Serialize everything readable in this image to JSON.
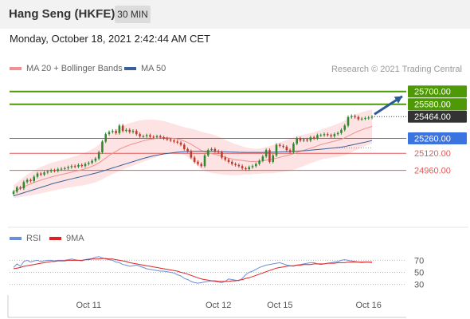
{
  "header": {
    "title": "Hang Seng (HKFE)",
    "timeframe": "30 MIN",
    "datetime": "Monday, October 18, 2021 2:42:44 AM CET"
  },
  "legend": {
    "ma20_label": "MA 20 + Bollinger Bands",
    "ma50_label": "MA 50",
    "credit": "Research © 2021 Trading Central",
    "rsi_label": "RSI",
    "rsi_ma_label": "9MA"
  },
  "colors": {
    "ma20": "#f19090",
    "band_fill": "#fde0e0",
    "ma50": "#3a5f9a",
    "resistance": "#4e9a06",
    "pivot": "#3b73e0",
    "support": "#e05b5b",
    "current": "#333333",
    "arrow": "#2d5b9a",
    "rsi": "#6b8fd6",
    "rsi_ma": "#dd2222",
    "candle_up": "#2f8a2f",
    "candle_down": "#c0392b"
  },
  "chart_data": [
    {
      "type": "candlestick",
      "title": "Hang Seng (HKFE)",
      "timeframe": "30 MIN",
      "x_labels": [
        "Oct 11",
        "Oct 12",
        "Oct 15",
        "Oct 16"
      ],
      "ylim": [
        24650,
        25840
      ],
      "levels": [
        {
          "label": "25700.00",
          "value": 25700,
          "kind": "resistance"
        },
        {
          "label": "25580.00",
          "value": 25580,
          "kind": "resistance"
        },
        {
          "label": "25464.00",
          "value": 25464,
          "kind": "current"
        },
        {
          "label": "25260.00",
          "value": 25260,
          "kind": "pivot"
        },
        {
          "label": "25120.00",
          "value": 25120,
          "kind": "support"
        },
        {
          "label": "24960.00",
          "value": 24960,
          "kind": "support"
        }
      ],
      "close": [
        24760,
        24800,
        24790,
        24850,
        24870,
        24860,
        24900,
        24930,
        24920,
        24940,
        24950,
        24960,
        24955,
        24970,
        24975,
        24980,
        24990,
        25000,
        24995,
        25010,
        25000,
        25020,
        25030,
        25050,
        25070,
        25130,
        25230,
        25300,
        25320,
        25330,
        25310,
        25380,
        25330,
        25340,
        25320,
        25330,
        25300,
        25280,
        25280,
        25290,
        25275,
        25270,
        25280,
        25270,
        25260,
        25250,
        25240,
        25230,
        25220,
        25200,
        25160,
        25140,
        25080,
        25040,
        25020,
        25000,
        25100,
        25150,
        25160,
        25140,
        25130,
        25080,
        25060,
        25040,
        25020,
        25010,
        25000,
        24980,
        24970,
        24990,
        25000,
        25020,
        25050,
        25090,
        25150,
        25040,
        25100,
        25200,
        25190,
        25180,
        25150,
        25130,
        25210,
        25260,
        25240,
        25250,
        25240,
        25270,
        25260,
        25290,
        25290,
        25300,
        25290,
        25280,
        25300,
        25310,
        25340,
        25380,
        25460,
        25470,
        25460,
        25440,
        25445,
        25450,
        25455,
        25464
      ],
      "ma20": [
        24760,
        24775,
        24790,
        24805,
        24820,
        24832,
        24845,
        24857,
        24868,
        24878,
        24888,
        24897,
        24905,
        24913,
        24920,
        24928,
        24935,
        24943,
        24950,
        24958,
        24965,
        24975,
        24985,
        24998,
        25012,
        25030,
        25052,
        25075,
        25098,
        25120,
        25138,
        25158,
        25172,
        25186,
        25198,
        25208,
        25218,
        25228,
        25236,
        25244,
        25250,
        25256,
        25260,
        25264,
        25266,
        25266,
        25264,
        25260,
        25254,
        25246,
        25235,
        25222,
        25205,
        25186,
        25166,
        25146,
        25134,
        25125,
        25118,
        25110,
        25102,
        25092,
        25083,
        25074,
        25066,
        25060,
        25056,
        25052,
        25048,
        25045,
        25044,
        25044,
        25046,
        25050,
        25056,
        25060,
        25066,
        25074,
        25082,
        25090,
        25098,
        25106,
        25116,
        25128,
        25138,
        25148,
        25158,
        25168,
        25178,
        25190,
        25200,
        25210,
        25218,
        25226,
        25234,
        25242,
        25252,
        25265,
        25282,
        25298,
        25314,
        25328,
        25340,
        25352,
        25362,
        25372
      ],
      "ma50": [
        24720,
        24730,
        24740,
        24750,
        24760,
        24770,
        24780,
        24790,
        24800,
        24810,
        24820,
        24830,
        24840,
        24848,
        24856,
        24864,
        24872,
        24880,
        24888,
        24895,
        24902,
        24910,
        24918,
        24926,
        24934,
        24942,
        24952,
        24962,
        24972,
        24982,
        24992,
        25002,
        25012,
        25022,
        25032,
        25042,
        25052,
        25062,
        25072,
        25080,
        25088,
        25096,
        25102,
        25108,
        25114,
        25118,
        25122,
        25126,
        25130,
        25133,
        25135,
        25136,
        25137,
        25138,
        25138,
        25138,
        25138,
        25138,
        25138,
        25137,
        25136,
        25135,
        25134,
        25133,
        25132,
        25131,
        25130,
        25129,
        25128,
        25128,
        25128,
        25128,
        25128,
        25128,
        25129,
        25130,
        25131,
        25132,
        25133,
        25134,
        25135,
        25136,
        25138,
        25140,
        25142,
        25144,
        25146,
        25149,
        25152,
        25155,
        25158,
        25161,
        25164,
        25167,
        25170,
        25174,
        25178,
        25183,
        25190,
        25197,
        25204,
        25211,
        25218,
        25225,
        25232,
        25240
      ],
      "band_width": [
        60,
        70,
        80,
        90,
        100,
        108,
        115,
        120,
        124,
        127,
        130,
        132,
        133,
        134,
        135,
        136,
        138,
        140,
        142,
        145,
        148,
        152,
        156,
        160,
        165,
        170,
        176,
        182,
        188,
        194,
        198,
        202,
        204,
        205,
        205,
        204,
        202,
        200,
        196,
        192,
        186,
        180,
        172,
        164,
        156,
        148,
        140,
        134,
        130,
        128,
        130,
        136,
        146,
        158,
        168,
        176,
        180,
        182,
        182,
        180,
        176,
        170,
        164,
        158,
        152,
        146,
        140,
        134,
        128,
        124,
        120,
        118,
        118,
        120,
        124,
        128,
        132,
        136,
        140,
        144,
        148,
        150,
        152,
        152,
        150,
        148,
        145,
        142,
        140,
        140,
        140,
        142,
        145,
        148,
        152,
        156,
        160,
        164,
        168,
        170,
        170,
        168,
        166,
        164,
        162,
        160
      ],
      "arrow": {
        "from_value": 25464,
        "to_value": 25700,
        "direction": "up"
      }
    },
    {
      "type": "line",
      "title": "RSI",
      "series": [
        {
          "name": "RSI",
          "values": [
            58,
            64,
            60,
            68,
            70,
            67,
            69,
            70,
            68,
            69,
            70,
            70,
            69,
            70,
            70,
            70,
            71,
            72,
            71,
            70,
            69,
            71,
            72,
            73,
            75,
            76,
            74,
            72,
            71,
            70,
            67,
            66,
            63,
            62,
            60,
            61,
            62,
            60,
            58,
            56,
            55,
            54,
            53,
            52,
            52,
            51,
            50,
            49,
            46,
            44,
            40,
            38,
            35,
            33,
            32,
            33,
            34,
            35,
            36,
            35,
            34,
            33,
            35,
            39,
            38,
            37,
            36,
            40,
            46,
            50,
            52,
            55,
            58,
            60,
            62,
            63,
            64,
            65,
            66,
            64,
            62,
            61,
            60,
            62,
            63,
            64,
            65,
            66,
            66,
            64,
            63,
            64,
            65,
            66,
            67,
            68,
            70,
            71,
            70,
            69,
            68,
            67,
            66,
            67,
            67,
            66
          ]
        },
        {
          "name": "9MA",
          "values": [
            56,
            57,
            58,
            60,
            61,
            62,
            63,
            64,
            65,
            66,
            67,
            68,
            68,
            69,
            69,
            69,
            70,
            70,
            70,
            70,
            70,
            71,
            71,
            72,
            72,
            72,
            73,
            73,
            72,
            72,
            71,
            70,
            69,
            68,
            66,
            65,
            64,
            63,
            62,
            61,
            60,
            59,
            58,
            57,
            56,
            55,
            54,
            53,
            52,
            50,
            49,
            47,
            45,
            43,
            41,
            39,
            38,
            37,
            36,
            36,
            35,
            35,
            35,
            35,
            36,
            36,
            37,
            38,
            40,
            41,
            43,
            45,
            47,
            49,
            51,
            53,
            55,
            57,
            58,
            59,
            60,
            61,
            61,
            62,
            62,
            63,
            63,
            63,
            64,
            64,
            64,
            64,
            65,
            65,
            65,
            66,
            66,
            66,
            67,
            67,
            67,
            67,
            67,
            67,
            67,
            67
          ]
        }
      ],
      "y_ticks": [
        "70",
        "50",
        "30"
      ],
      "ylim": [
        15,
        85
      ]
    }
  ]
}
